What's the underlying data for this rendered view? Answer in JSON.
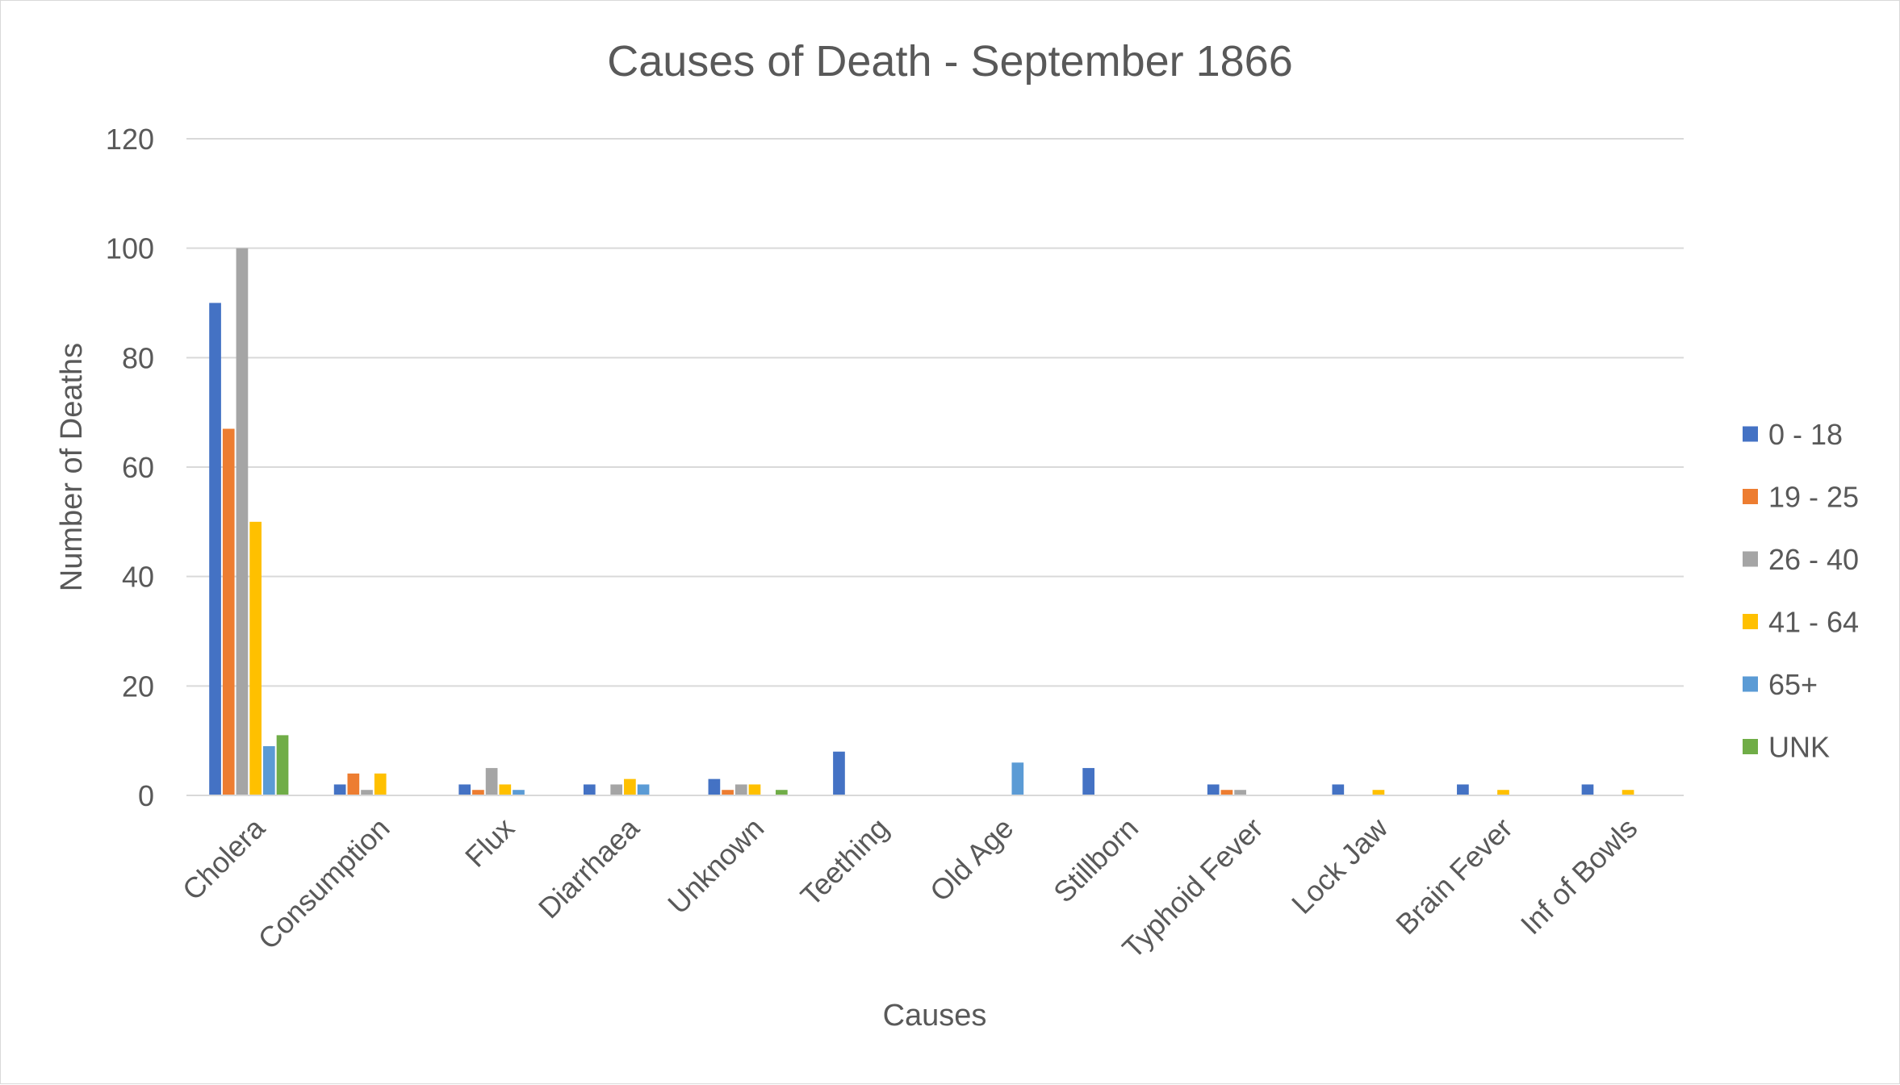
{
  "chart_data": {
    "type": "bar",
    "title": "Causes of Death - September 1866",
    "xlabel": "Causes",
    "ylabel": "Number of Deaths",
    "ylim": [
      0,
      120
    ],
    "yticks": [
      0,
      20,
      40,
      60,
      80,
      100,
      120
    ],
    "grid": "horizontal",
    "legend_position": "right",
    "categories": [
      "Cholera",
      "Consumption",
      "Flux",
      "Diarrhaea",
      "Unknown",
      "Teething",
      "Old Age",
      "Stillborn",
      "Typhoid Fever",
      "Lock Jaw",
      "Brain Fever",
      "Inf of Bowls"
    ],
    "series": [
      {
        "name": "0 - 18",
        "color": "#4472C4",
        "values": [
          90,
          2,
          2,
          2,
          3,
          8,
          0,
          5,
          2,
          2,
          2,
          2
        ]
      },
      {
        "name": "19 - 25",
        "color": "#ED7D31",
        "values": [
          67,
          4,
          1,
          0,
          1,
          0,
          0,
          0,
          1,
          0,
          0,
          0
        ]
      },
      {
        "name": "26 - 40",
        "color": "#A5A5A5",
        "values": [
          100,
          1,
          5,
          2,
          2,
          0,
          0,
          0,
          1,
          0,
          0,
          0
        ]
      },
      {
        "name": "41 - 64",
        "color": "#FFC000",
        "values": [
          50,
          4,
          2,
          3,
          2,
          0,
          0,
          0,
          0,
          1,
          1,
          1
        ]
      },
      {
        "name": "65+",
        "color": "#5B9BD5",
        "values": [
          9,
          0,
          1,
          2,
          0,
          0,
          6,
          0,
          0,
          0,
          0,
          0
        ]
      },
      {
        "name": "UNK",
        "color": "#70AD47",
        "values": [
          11,
          0,
          0,
          0,
          1,
          0,
          0,
          0,
          0,
          0,
          0,
          0
        ]
      }
    ]
  }
}
